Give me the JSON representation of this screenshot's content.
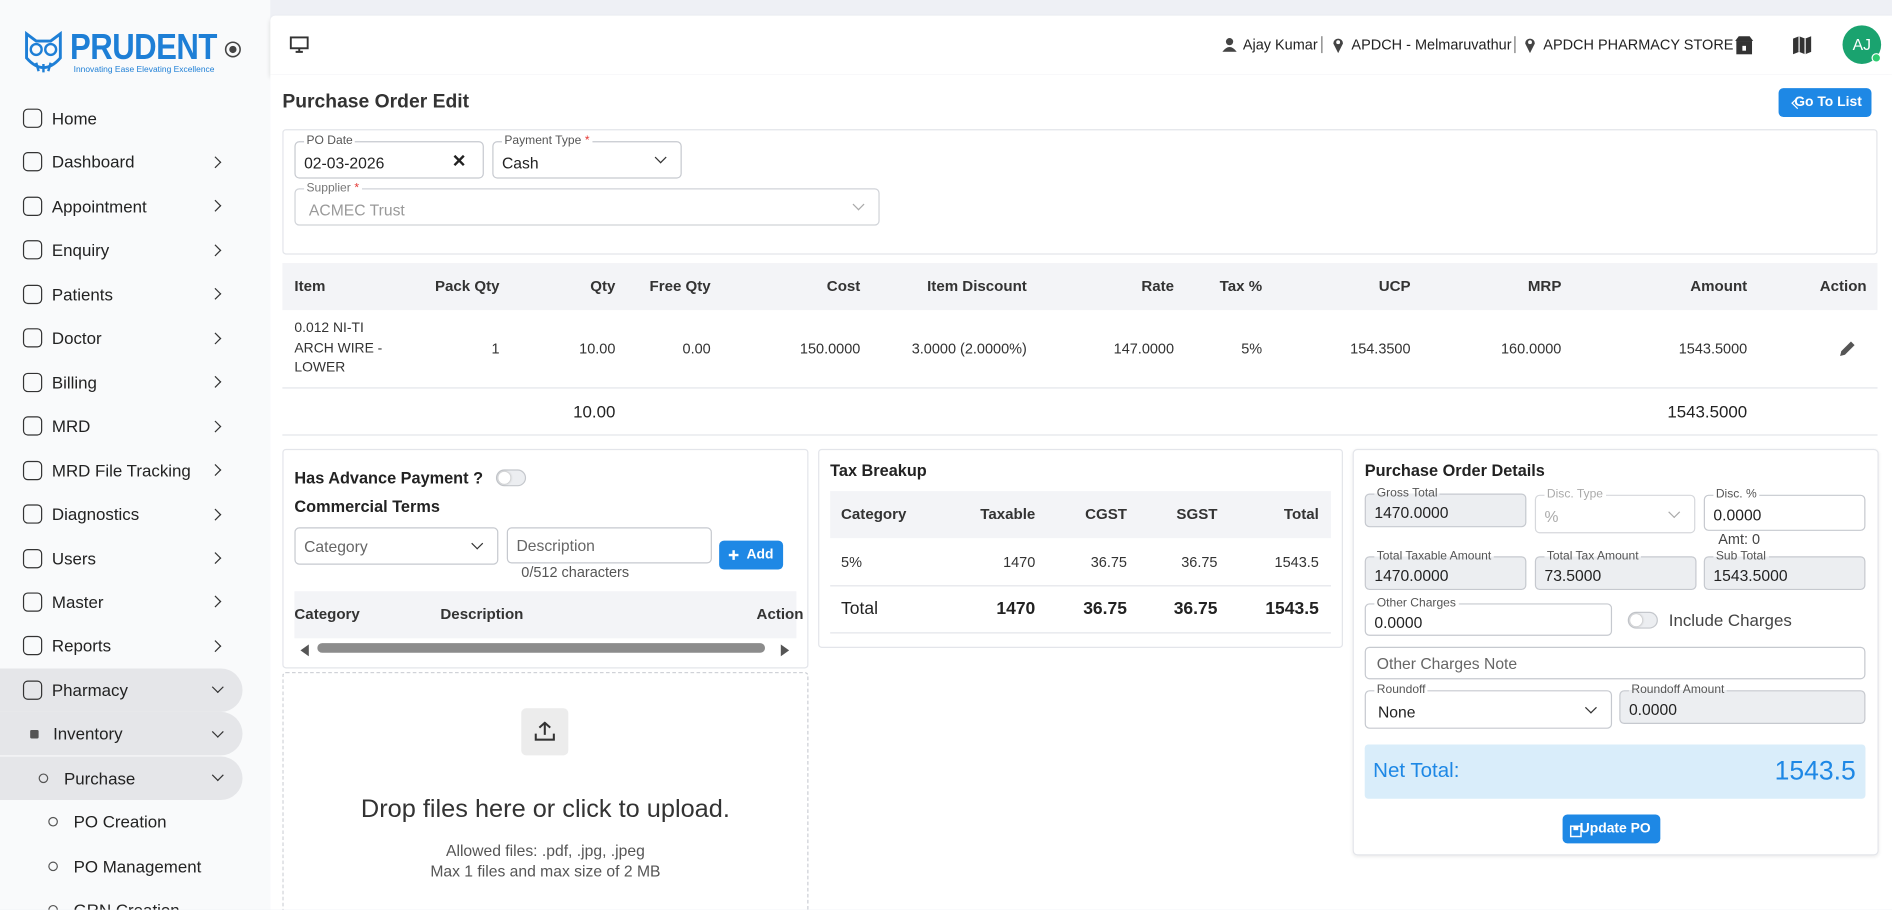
{
  "brand": {
    "name": "PRUDENT",
    "tagline": "Innovating Ease Elevating Excellence"
  },
  "sidebar": {
    "items": [
      {
        "label": "Home",
        "level": 0,
        "state": "leaf"
      },
      {
        "label": "Dashboard",
        "level": 0,
        "state": "collapsed"
      },
      {
        "label": "Appointment",
        "level": 0,
        "state": "collapsed"
      },
      {
        "label": "Enquiry",
        "level": 0,
        "state": "collapsed"
      },
      {
        "label": "Patients",
        "level": 0,
        "state": "collapsed"
      },
      {
        "label": "Doctor",
        "level": 0,
        "state": "collapsed"
      },
      {
        "label": "Billing",
        "level": 0,
        "state": "collapsed"
      },
      {
        "label": "MRD",
        "level": 0,
        "state": "collapsed"
      },
      {
        "label": "MRD File Tracking",
        "level": 0,
        "state": "collapsed"
      },
      {
        "label": "Diagnostics",
        "level": 0,
        "state": "collapsed"
      },
      {
        "label": "Users",
        "level": 0,
        "state": "collapsed"
      },
      {
        "label": "Master",
        "level": 0,
        "state": "collapsed"
      },
      {
        "label": "Reports",
        "level": 0,
        "state": "collapsed"
      },
      {
        "label": "Pharmacy",
        "level": 0,
        "state": "expanded"
      },
      {
        "label": "Inventory",
        "level": 1,
        "state": "expanded"
      },
      {
        "label": "Purchase",
        "level": 2,
        "state": "expanded"
      },
      {
        "label": "PO Creation",
        "level": 3,
        "state": "leaf"
      },
      {
        "label": "PO Management",
        "level": 3,
        "state": "leaf"
      },
      {
        "label": "GRN Creation",
        "level": 3,
        "state": "leaf"
      }
    ]
  },
  "topbar": {
    "user": "Ajay Kumar",
    "location": "APDCH - Melmaruvathur",
    "store": "APDCH PHARMACY STORE",
    "avatar": "AJ"
  },
  "page": {
    "title": "Purchase Order Edit",
    "back_button": "Go To List"
  },
  "form": {
    "required_mark": "*",
    "po_date": {
      "label": "PO Date",
      "value": "02-03-2026"
    },
    "payment_type": {
      "label": "Payment Type",
      "value": "Cash"
    },
    "supplier": {
      "label": "Supplier",
      "value": "ACMEC Trust"
    }
  },
  "items_table": {
    "headers": [
      "Item",
      "Pack Qty",
      "Qty",
      "Free Qty",
      "Cost",
      "Item Discount",
      "Rate",
      "Tax %",
      "UCP",
      "MRP",
      "Amount",
      "Action"
    ],
    "rows": [
      [
        "0.012 NI-TI ARCH WIRE - LOWER",
        "1",
        "10.00",
        "0.00",
        "150.0000",
        "3.0000 (2.0000%)",
        "147.0000",
        "5%",
        "154.3500",
        "160.0000",
        "1543.5000"
      ]
    ],
    "totals": {
      "qty": "10.00",
      "amount": "1543.5000"
    }
  },
  "commercial": {
    "advance_label": "Has Advance Payment ?",
    "title": "Commercial Terms",
    "category_placeholder": "Category",
    "description_placeholder": "Description",
    "char_count": "0/512 characters",
    "add_button": "Add",
    "headers": [
      "Category",
      "Description",
      "Action"
    ]
  },
  "upload": {
    "title": "Drop files here or click to upload.",
    "allowed": "Allowed files: .pdf, .jpg, .jpeg",
    "limit": "Max 1 files and max size of 2 MB"
  },
  "tax_breakup": {
    "title": "Tax Breakup",
    "headers": [
      "Category",
      "Taxable",
      "CGST",
      "SGST",
      "Total"
    ],
    "rows": [
      [
        "5%",
        "1470",
        "36.75",
        "36.75",
        "1543.5"
      ]
    ],
    "total": [
      "Total",
      "1470",
      "36.75",
      "36.75",
      "1543.5"
    ]
  },
  "po_details": {
    "title": "Purchase Order Details",
    "gross_total": {
      "label": "Gross Total",
      "value": "1470.0000"
    },
    "disc_type": {
      "label": "Disc. Type",
      "value": "%"
    },
    "disc_percent": {
      "label": "Disc. %",
      "value": "0.0000"
    },
    "amount_note": "Amt: 0",
    "taxable_amount": {
      "label": "Total Taxable Amount",
      "value": "1470.0000"
    },
    "tax_amount": {
      "label": "Total Tax Amount",
      "value": "73.5000"
    },
    "sub_total": {
      "label": "Sub Total",
      "value": "1543.5000"
    },
    "other_charges": {
      "label": "Other Charges",
      "value": "0.0000"
    },
    "include_charges": "Include Charges",
    "other_charges_note": "Other Charges Note",
    "roundoff": {
      "label": "Roundoff",
      "value": "None"
    },
    "roundoff_amount": {
      "label": "Roundoff Amount",
      "value": "0.0000"
    },
    "net_total": {
      "label": "Net Total:",
      "value": "1543.5"
    },
    "update_button": "Update PO"
  }
}
